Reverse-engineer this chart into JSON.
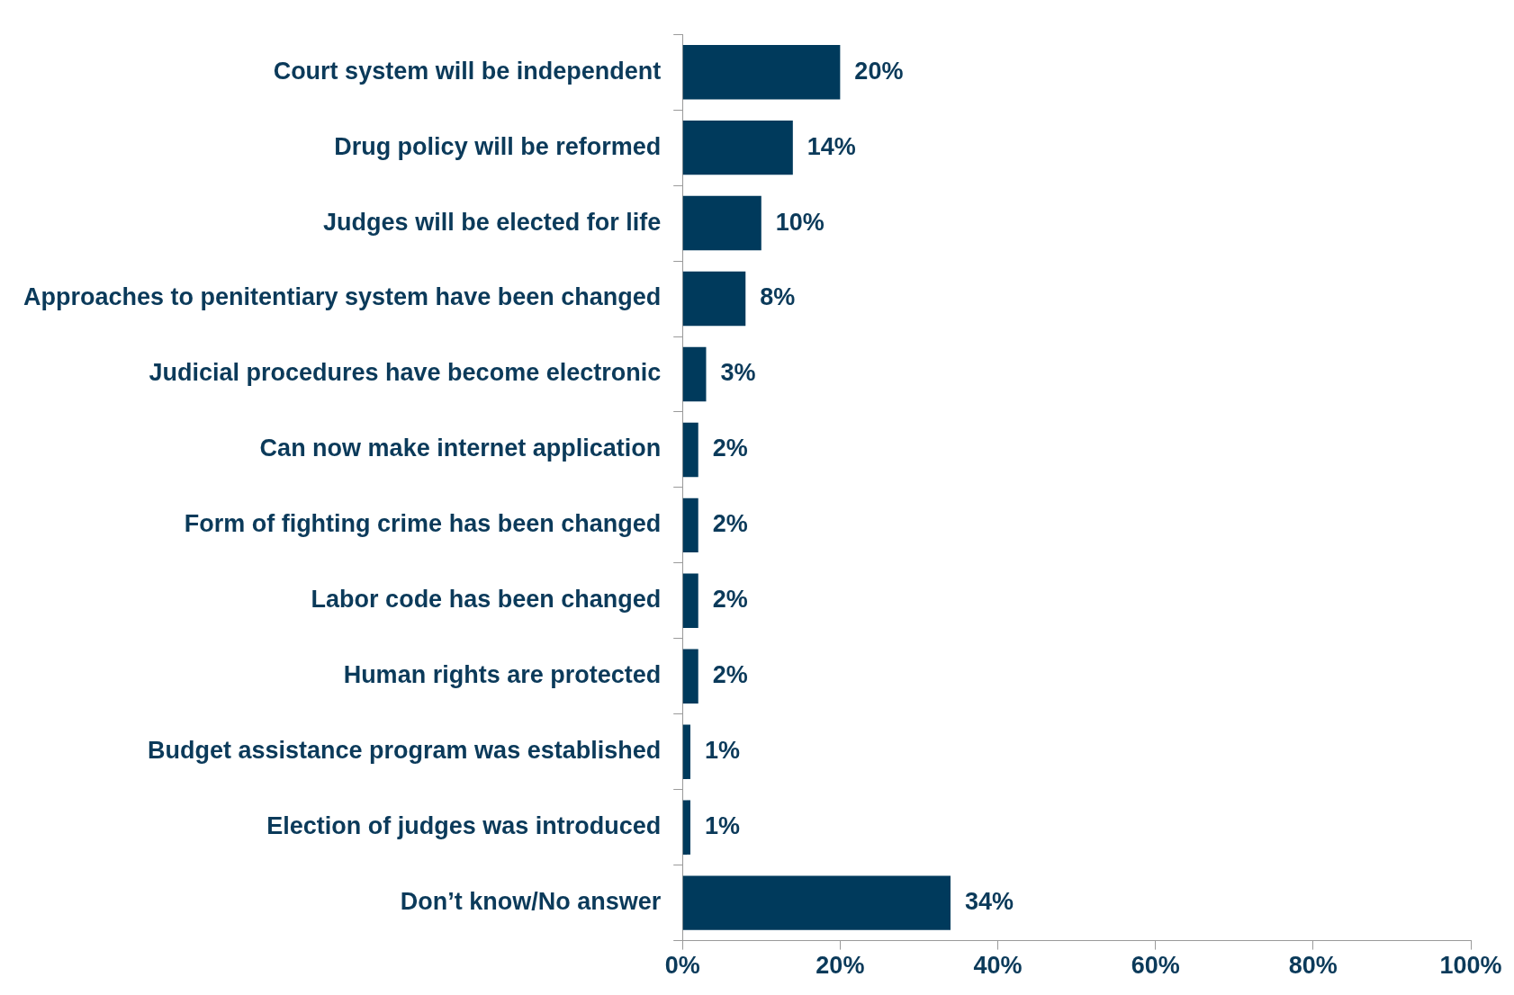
{
  "chart_data": {
    "type": "bar",
    "orientation": "horizontal",
    "color": "#003a5c",
    "categories": [
      "Court system will be independent",
      "Drug policy will be reformed",
      "Judges will be elected for life",
      "Approaches to penitentiary system have been changed",
      "Judicial procedures have become electronic",
      "Can now make internet application",
      "Form of fighting crime has been changed",
      "Labor code has been changed",
      "Human rights are protected",
      "Budget assistance program was established",
      "Election of judges was introduced",
      "Don’t know/No answer"
    ],
    "values": [
      20,
      14,
      10,
      8,
      3,
      2,
      2,
      2,
      2,
      1,
      1,
      34
    ],
    "value_labels": [
      "20%",
      "14%",
      "10%",
      "8%",
      "3%",
      "2%",
      "2%",
      "2%",
      "2%",
      "1%",
      "1%",
      "34%"
    ],
    "xlim": [
      0,
      100
    ],
    "xticks": [
      {
        "value": 0,
        "label": "0%"
      },
      {
        "value": 20,
        "label": "20%"
      },
      {
        "value": 40,
        "label": "40%"
      },
      {
        "value": 60,
        "label": "60%"
      },
      {
        "value": 80,
        "label": "80%"
      },
      {
        "value": 100,
        "label": "100%"
      }
    ],
    "grid": false,
    "legend": false
  }
}
